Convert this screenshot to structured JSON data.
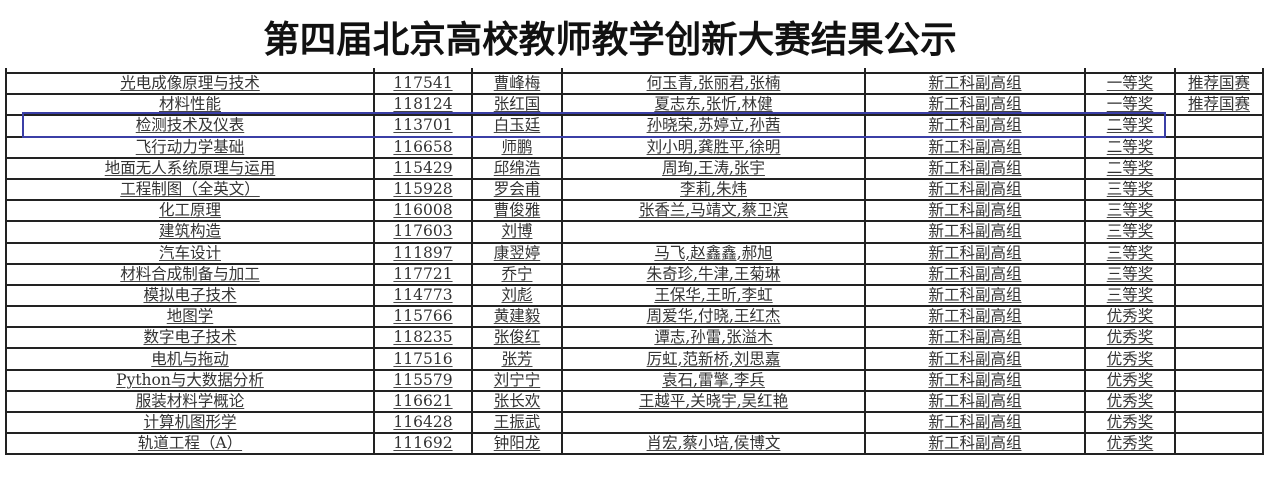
{
  "title": "第四届北京高校教师教学创新大赛结果公示",
  "highlight_color": "#3b3fa6",
  "rows": [
    [
      "光电成像原理与技术",
      "117541",
      "曹峰梅",
      "何玉青,张丽君,张楠",
      "新工科副高组",
      "一等奖",
      "推荐国赛"
    ],
    [
      "材料性能",
      "118124",
      "张红国",
      "夏志东,张忻,林健",
      "新工科副高组",
      "一等奖",
      "推荐国赛"
    ],
    [
      "检测技术及仪表",
      "113701",
      "白玉廷",
      "孙晓荣,苏婷立,孙茜",
      "新工科副高组",
      "二等奖",
      ""
    ],
    [
      "飞行动力学基础",
      "116658",
      "师鹏",
      "刘小明,龚胜平,徐明",
      "新工科副高组",
      "二等奖",
      ""
    ],
    [
      "地面无人系统原理与运用",
      "115429",
      "邱绵浩",
      "周珣,王涛,张宇",
      "新工科副高组",
      "二等奖",
      ""
    ],
    [
      "工程制图（全英文）",
      "115928",
      "罗会甫",
      "李莉,朱炜",
      "新工科副高组",
      "三等奖",
      ""
    ],
    [
      "化工原理",
      "116008",
      "曹俊雅",
      "张香兰,马靖文,蔡卫滨",
      "新工科副高组",
      "三等奖",
      ""
    ],
    [
      "建筑构造",
      "117603",
      "刘博",
      "",
      "新工科副高组",
      "三等奖",
      ""
    ],
    [
      "汽车设计",
      "111897",
      "康翌婷",
      "马飞,赵鑫鑫,郝旭",
      "新工科副高组",
      "三等奖",
      ""
    ],
    [
      "材料合成制备与加工",
      "117721",
      "乔宁",
      "朱奇珍,牛津,王菊琳",
      "新工科副高组",
      "三等奖",
      ""
    ],
    [
      "模拟电子技术",
      "114773",
      "刘彪",
      "王保华,王昕,李虹",
      "新工科副高组",
      "三等奖",
      ""
    ],
    [
      "地图学",
      "115766",
      "黄建毅",
      "周爱华,付晓,王红杰",
      "新工科副高组",
      "优秀奖",
      ""
    ],
    [
      "数字电子技术",
      "118235",
      "张俊红",
      "谭志,孙雷,张溢木",
      "新工科副高组",
      "优秀奖",
      ""
    ],
    [
      "电机与拖动",
      "117516",
      "张芳",
      "厉虹,范新桥,刘思嘉",
      "新工科副高组",
      "优秀奖",
      ""
    ],
    [
      "Python与大数据分析",
      "115579",
      "刘宁宁",
      "袁石,雷擎,李兵",
      "新工科副高组",
      "优秀奖",
      ""
    ],
    [
      "服装材料学概论",
      "116621",
      "张长欢",
      "王越平,关晓宇,吴红艳",
      "新工科副高组",
      "优秀奖",
      ""
    ],
    [
      "计算机图形学",
      "116428",
      "王振武",
      "",
      "新工科副高组",
      "优秀奖",
      ""
    ],
    [
      "轨道工程（A）",
      "111692",
      "钟阳龙",
      "肖宏,蔡小培,侯博文",
      "新工科副高组",
      "优秀奖",
      ""
    ]
  ]
}
